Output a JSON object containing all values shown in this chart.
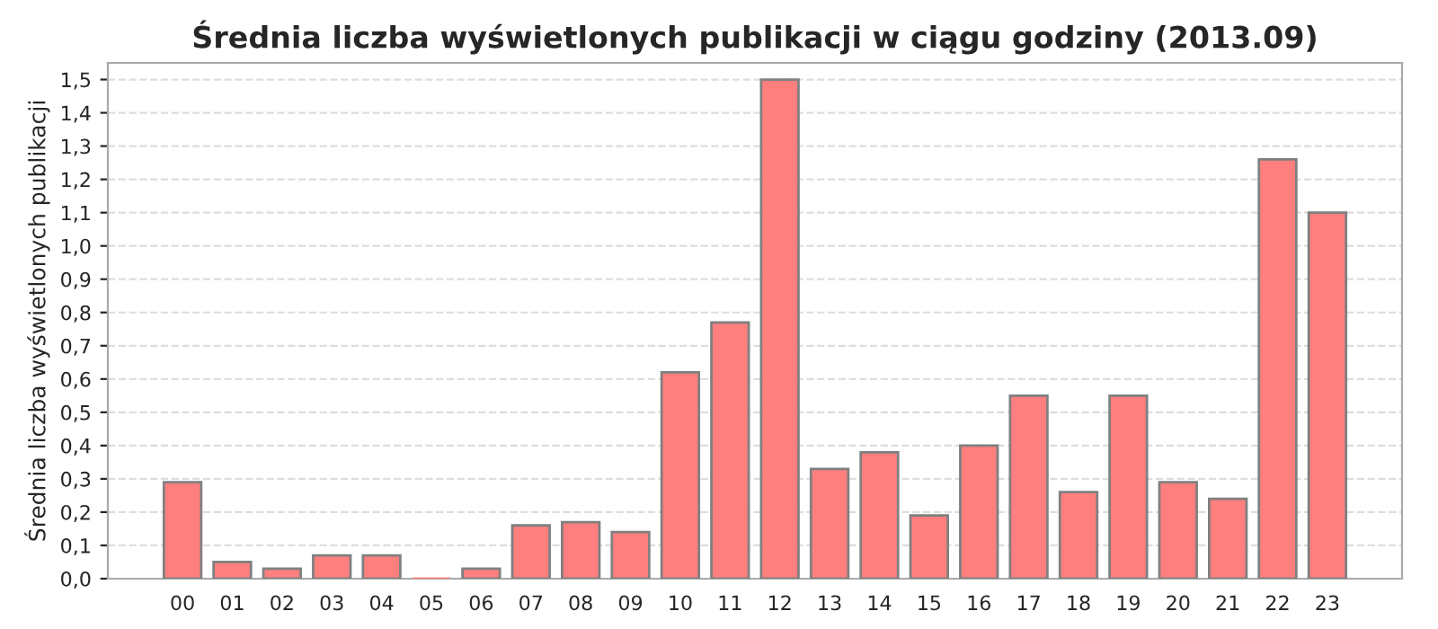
{
  "chart_data": {
    "type": "bar",
    "title": "Średnia liczba wyświetlonych publikacji w ciągu godziny (2013.09)",
    "ylabel": "Średnia liczba wyświetlonych publikacji",
    "categories": [
      "00",
      "01",
      "02",
      "03",
      "04",
      "05",
      "06",
      "07",
      "08",
      "09",
      "10",
      "11",
      "12",
      "13",
      "14",
      "15",
      "16",
      "17",
      "18",
      "19",
      "20",
      "21",
      "22",
      "23"
    ],
    "values": [
      0.29,
      0.05,
      0.03,
      0.07,
      0.07,
      0.0,
      0.03,
      0.16,
      0.17,
      0.14,
      0.62,
      0.77,
      1.5,
      0.33,
      0.38,
      0.19,
      0.4,
      0.55,
      0.26,
      0.55,
      0.29,
      0.24,
      1.26,
      1.1
    ],
    "color": "#ff7f7f",
    "ylim": [
      0,
      1.55
    ],
    "yticks": [
      {
        "value": 0,
        "label": "0,0"
      },
      {
        "value": 0.1,
        "label": "0,1"
      },
      {
        "value": 0.2,
        "label": "0,2"
      },
      {
        "value": 0.3,
        "label": "0,3"
      },
      {
        "value": 0.4,
        "label": "0,4"
      },
      {
        "value": 0.5,
        "label": "0,5"
      },
      {
        "value": 0.6,
        "label": "0,6"
      },
      {
        "value": 0.7,
        "label": "0,7"
      },
      {
        "value": 0.8,
        "label": "0,8"
      },
      {
        "value": 0.9,
        "label": "0,9"
      },
      {
        "value": 1.0,
        "label": "1,0"
      },
      {
        "value": 1.1,
        "label": "1,1"
      },
      {
        "value": 1.2,
        "label": "1,2"
      },
      {
        "value": 1.3,
        "label": "1,3"
      },
      {
        "value": 1.4,
        "label": "1,4"
      },
      {
        "value": 1.5,
        "label": "1,5"
      }
    ],
    "grid": "y"
  }
}
